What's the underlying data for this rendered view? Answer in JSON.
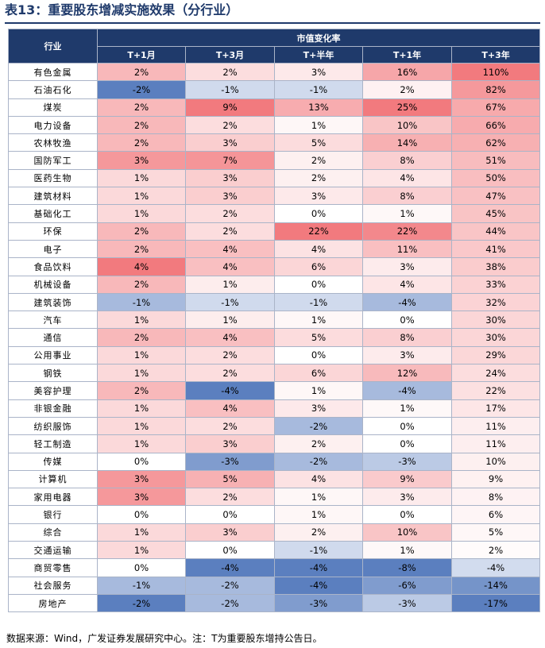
{
  "title": "表13：重要股东增减实施效果（分行业）",
  "header": {
    "industry_label": "行业",
    "group_label": "市值变化率",
    "columns": [
      "T+1月",
      "T+3月",
      "T+半年",
      "T+1年",
      "T+3年"
    ]
  },
  "rows": [
    {
      "industry": "有色金属",
      "values": [
        "2%",
        "2%",
        "3%",
        "16%",
        "110%"
      ]
    },
    {
      "industry": "石油石化",
      "values": [
        "-2%",
        "-1%",
        "-1%",
        "2%",
        "82%"
      ]
    },
    {
      "industry": "煤炭",
      "values": [
        "2%",
        "9%",
        "13%",
        "25%",
        "67%"
      ]
    },
    {
      "industry": "电力设备",
      "values": [
        "2%",
        "2%",
        "1%",
        "10%",
        "66%"
      ]
    },
    {
      "industry": "农林牧渔",
      "values": [
        "2%",
        "3%",
        "5%",
        "14%",
        "62%"
      ]
    },
    {
      "industry": "国防军工",
      "values": [
        "3%",
        "7%",
        "2%",
        "8%",
        "51%"
      ]
    },
    {
      "industry": "医药生物",
      "values": [
        "1%",
        "3%",
        "2%",
        "4%",
        "50%"
      ]
    },
    {
      "industry": "建筑材料",
      "values": [
        "1%",
        "3%",
        "3%",
        "8%",
        "47%"
      ]
    },
    {
      "industry": "基础化工",
      "values": [
        "1%",
        "2%",
        "0%",
        "1%",
        "45%"
      ]
    },
    {
      "industry": "环保",
      "values": [
        "2%",
        "2%",
        "22%",
        "22%",
        "44%"
      ]
    },
    {
      "industry": "电子",
      "values": [
        "2%",
        "4%",
        "4%",
        "11%",
        "41%"
      ]
    },
    {
      "industry": "食品饮料",
      "values": [
        "4%",
        "4%",
        "6%",
        "3%",
        "38%"
      ]
    },
    {
      "industry": "机械设备",
      "values": [
        "2%",
        "1%",
        "0%",
        "4%",
        "33%"
      ]
    },
    {
      "industry": "建筑装饰",
      "values": [
        "-1%",
        "-1%",
        "-1%",
        "-4%",
        "32%"
      ]
    },
    {
      "industry": "汽车",
      "values": [
        "1%",
        "1%",
        "1%",
        "0%",
        "30%"
      ]
    },
    {
      "industry": "通信",
      "values": [
        "2%",
        "4%",
        "5%",
        "8%",
        "30%"
      ]
    },
    {
      "industry": "公用事业",
      "values": [
        "1%",
        "2%",
        "0%",
        "3%",
        "29%"
      ]
    },
    {
      "industry": "钢铁",
      "values": [
        "1%",
        "2%",
        "6%",
        "12%",
        "24%"
      ]
    },
    {
      "industry": "美容护理",
      "values": [
        "2%",
        "-4%",
        "1%",
        "-4%",
        "22%"
      ]
    },
    {
      "industry": "非银金融",
      "values": [
        "1%",
        "4%",
        "3%",
        "1%",
        "17%"
      ]
    },
    {
      "industry": "纺织服饰",
      "values": [
        "1%",
        "2%",
        "-2%",
        "0%",
        "11%"
      ]
    },
    {
      "industry": "轻工制造",
      "values": [
        "1%",
        "3%",
        "2%",
        "0%",
        "11%"
      ]
    },
    {
      "industry": "传媒",
      "values": [
        "0%",
        "-3%",
        "-2%",
        "-3%",
        "10%"
      ]
    },
    {
      "industry": "计算机",
      "values": [
        "3%",
        "5%",
        "4%",
        "9%",
        "9%"
      ]
    },
    {
      "industry": "家用电器",
      "values": [
        "3%",
        "2%",
        "1%",
        "3%",
        "8%"
      ]
    },
    {
      "industry": "银行",
      "values": [
        "0%",
        "0%",
        "1%",
        "0%",
        "6%"
      ]
    },
    {
      "industry": "综合",
      "values": [
        "1%",
        "3%",
        "2%",
        "10%",
        "5%"
      ]
    },
    {
      "industry": "交通运输",
      "values": [
        "1%",
        "0%",
        "-1%",
        "1%",
        "2%"
      ]
    },
    {
      "industry": "商贸零售",
      "values": [
        "0%",
        "-4%",
        "-4%",
        "-8%",
        "-4%"
      ]
    },
    {
      "industry": "社会服务",
      "values": [
        "-1%",
        "-2%",
        "-4%",
        "-6%",
        "-14%"
      ]
    },
    {
      "industry": "房地产",
      "values": [
        "-2%",
        "-2%",
        "-3%",
        "-3%",
        "-17%"
      ]
    }
  ],
  "colors": {
    "header_bg": "#1f3a6b",
    "positive_scale": "#f27a7e",
    "negative_scale": "#5b7fbf",
    "neutral": "#ffffff"
  },
  "footnote": "数据来源：Wind，广发证券发展研究中心。注：T为重要股东增持公告日。"
}
